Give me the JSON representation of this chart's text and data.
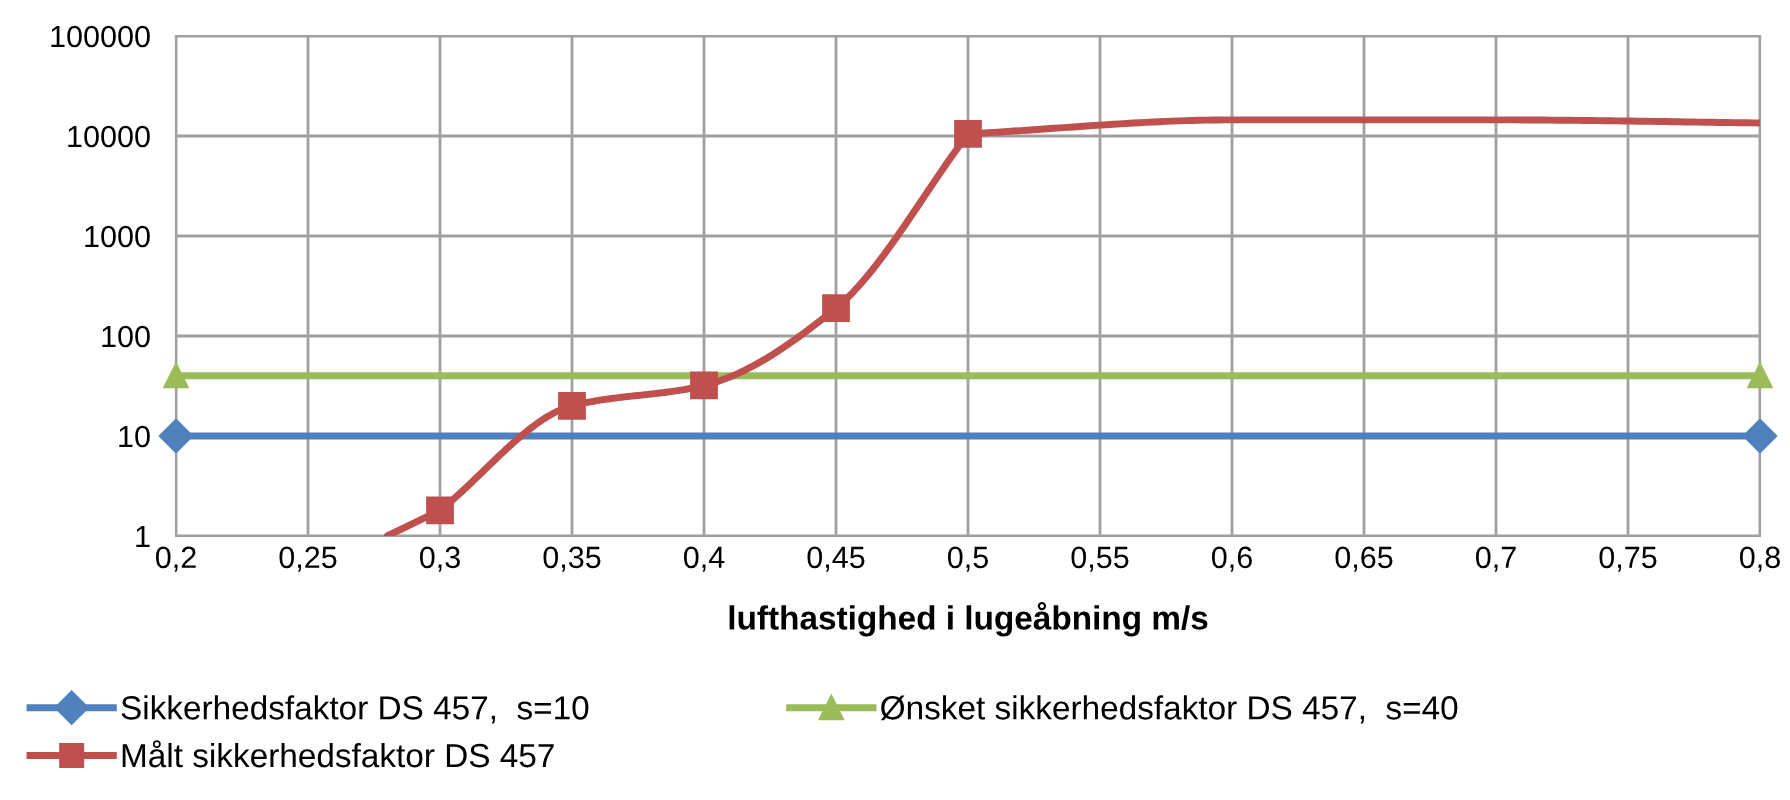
{
  "chart_data": {
    "type": "line",
    "xlabel": "lufthastighed i lugeåbning m/s",
    "log": "y",
    "grid": true,
    "legend": "bottom",
    "line_style": "solid",
    "xlim": [
      0.2,
      0.8
    ],
    "xticks": [
      {
        "value": 0.2,
        "label": "0,2"
      },
      {
        "value": 0.25,
        "label": "0,25"
      },
      {
        "value": 0.3,
        "label": "0,3"
      },
      {
        "value": 0.35,
        "label": "0,35"
      },
      {
        "value": 0.4,
        "label": "0,4"
      },
      {
        "value": 0.45,
        "label": "0,45"
      },
      {
        "value": 0.5,
        "label": "0,5"
      },
      {
        "value": 0.55,
        "label": "0,55"
      },
      {
        "value": 0.6,
        "label": "0,6"
      },
      {
        "value": 0.65,
        "label": "0,65"
      },
      {
        "value": 0.7,
        "label": "0,7"
      },
      {
        "value": 0.75,
        "label": "0,75"
      },
      {
        "value": 0.8,
        "label": "0,8"
      }
    ],
    "ylim": [
      1,
      100000
    ],
    "yticks": [
      1,
      10,
      100,
      1000,
      10000,
      100000
    ],
    "series": [
      {
        "name": "Sikkerhedsfaktor DS 457,  s=10",
        "color": "#4f81bd",
        "marker": "diamond",
        "x": [
          0.2,
          0.8
        ],
        "values": [
          10,
          10
        ]
      },
      {
        "name": "Ønsket sikkerhedsfaktor DS 457,  s=40",
        "color": "#9bbb59",
        "marker": "triangle",
        "x": [
          0.2,
          0.8
        ],
        "values": [
          40,
          40
        ]
      },
      {
        "name": "Målt sikkerhedsfaktor DS 457",
        "color": "#c0504d",
        "marker": "square",
        "x": [
          0.3,
          0.35,
          0.4,
          0.45,
          0.5
        ],
        "values": [
          1.8,
          20,
          32,
          190,
          10500
        ]
      },
      {
        "color": "#c0504d",
        "marker": "none",
        "x": [
          0.28,
          0.3,
          0.4,
          0.5,
          0.6,
          0.7,
          0.8
        ],
        "values": [
          1,
          1.8,
          null,
          10500,
          14500,
          14500,
          13500
        ]
      }
    ]
  }
}
